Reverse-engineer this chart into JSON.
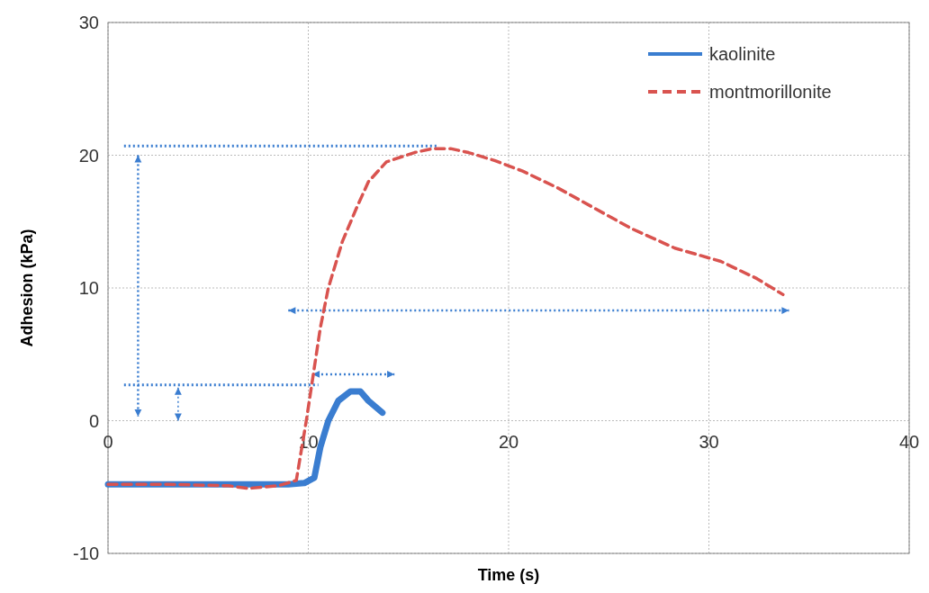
{
  "chart_data": {
    "type": "line",
    "xlabel": "Time (s)",
    "ylabel": "Adhesion (kPa)",
    "xlim": [
      0,
      40
    ],
    "xticks": [
      0,
      10,
      20,
      30,
      40
    ],
    "ylim": [
      -10,
      30
    ],
    "yticks": [
      -10,
      0,
      10,
      20,
      30
    ],
    "grid": true,
    "legend": "top right",
    "marker": "none",
    "series": [
      {
        "name": "kaolinite",
        "color": "#3a7dd0",
        "line_style": "solid",
        "x": [
          0,
          3,
          6,
          9,
          9.8,
          10.3,
          10.6,
          11,
          11.5,
          12.1,
          12.6,
          13,
          13.7
        ],
        "values": [
          -4.8,
          -4.8,
          -4.8,
          -4.8,
          -4.7,
          -4.3,
          -2,
          0,
          1.5,
          2.2,
          2.2,
          1.5,
          0.6
        ]
      },
      {
        "name": "montmorillonite",
        "color": "#d9534f",
        "line_style": "dashed",
        "x": [
          0,
          3,
          6,
          7,
          8.5,
          9.4,
          9.9,
          10.1,
          10.6,
          11,
          11.7,
          12.4,
          13,
          13.9,
          15.3,
          16.2,
          17.1,
          18,
          19.3,
          20.7,
          22.5,
          24.3,
          26.1,
          28.3,
          30.6,
          32.4,
          33.7
        ],
        "values": [
          -4.8,
          -4.8,
          -4.9,
          -5.1,
          -4.9,
          -4.5,
          0,
          2,
          7,
          10,
          13.5,
          16,
          18,
          19.5,
          20.2,
          20.5,
          20.5,
          20.2,
          19.6,
          18.8,
          17.5,
          16,
          14.5,
          13,
          12,
          10.7,
          9.5
        ]
      }
    ]
  }
}
